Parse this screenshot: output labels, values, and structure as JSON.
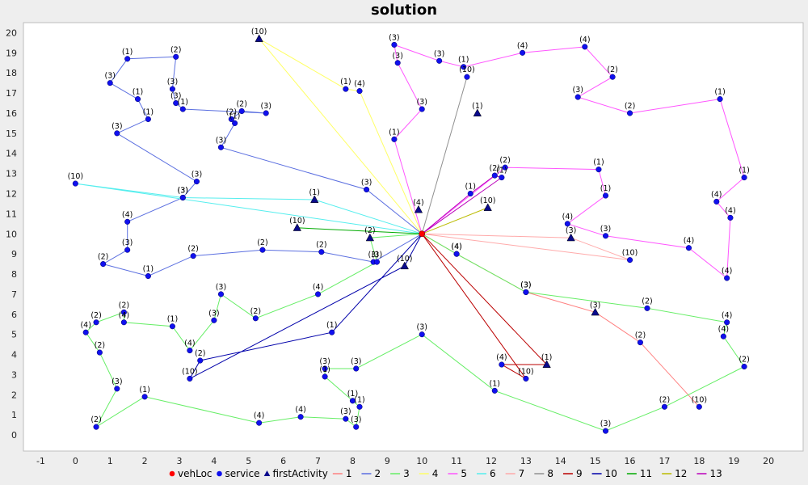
{
  "chart_data": {
    "type": "scatter",
    "title": "solution",
    "xlabel": "",
    "ylabel": "",
    "xlim": [
      -1.5,
      21
    ],
    "ylim": [
      -0.8,
      20.5
    ],
    "x_ticks": [
      -1,
      0,
      1,
      2,
      3,
      4,
      5,
      6,
      7,
      8,
      9,
      10,
      11,
      12,
      13,
      14,
      15,
      16,
      17,
      18,
      19,
      20
    ],
    "y_ticks": [
      0,
      1,
      2,
      3,
      4,
      5,
      6,
      7,
      8,
      9,
      10,
      11,
      12,
      13,
      14,
      15,
      16,
      17,
      18,
      19,
      20
    ],
    "grid": false,
    "legend_position": "bottom",
    "colors": {
      "background": "#eeeeee",
      "plot_background": "#ffffff",
      "vehLoc": "#ff0000",
      "service": "#1010ee",
      "firstActivity": "#0a0a8c"
    },
    "legend": {
      "markers": [
        {
          "key": "vehLoc",
          "label": "vehLoc",
          "shape": "circle",
          "color": "#ff0000"
        },
        {
          "key": "service",
          "label": "service",
          "shape": "circle",
          "color": "#1010ee"
        },
        {
          "key": "firstActivity",
          "label": "firstActivity",
          "shape": "triangle",
          "color": "#0a0a8c"
        }
      ]
    },
    "vehicle": {
      "x": 10,
      "y": 10
    },
    "routes": [
      {
        "name": "1",
        "color": "#ff8080",
        "points": [
          [
            10,
            10
          ],
          [
            11,
            9
          ],
          [
            13,
            7.1
          ],
          [
            15,
            6.1
          ],
          [
            16.3,
            4.6
          ],
          [
            18,
            1.4
          ]
        ],
        "labels": [
          null,
          "(4)",
          "(3)",
          "(3)",
          "(2)",
          "(10)"
        ],
        "first_index": 3
      },
      {
        "name": "2",
        "color": "#5b6fe0",
        "points": [
          [
            10,
            10
          ],
          [
            8.4,
            12.2
          ],
          [
            4.2,
            14.3
          ],
          [
            4.6,
            15.5
          ],
          [
            4.5,
            15.7
          ],
          [
            4.8,
            16.1
          ],
          [
            5.5,
            16
          ],
          [
            3.1,
            16.2
          ],
          [
            2.9,
            16.5
          ],
          [
            2.8,
            17.2
          ],
          [
            2.9,
            18.8
          ],
          [
            1.5,
            18.7
          ],
          [
            1,
            17.5
          ],
          [
            1.8,
            16.7
          ],
          [
            2.1,
            15.7
          ],
          [
            1.2,
            15
          ],
          [
            3.5,
            12.6
          ],
          [
            3.1,
            11.8
          ],
          [
            1.5,
            10.6
          ],
          [
            1.5,
            9.2
          ],
          [
            0.8,
            8.5
          ],
          [
            2.1,
            7.9
          ],
          [
            3.4,
            8.9
          ],
          [
            5.4,
            9.2
          ],
          [
            7.1,
            9.1
          ],
          [
            8.6,
            8.6
          ],
          [
            10,
            10
          ]
        ],
        "labels": [
          null,
          "(3)",
          "(3)",
          "(1)",
          "(2)",
          "(2)",
          "(3)",
          "(1)",
          "(3)",
          "(3)",
          "(2)",
          "(1)",
          "(3)",
          "(1)",
          "(1)",
          "(3)",
          "(3)",
          "(3)",
          "(4)",
          "(3)",
          "(2)",
          "(1)",
          "(2)",
          "(2)",
          "(2)",
          "(3)",
          null
        ],
        "first_index": null
      },
      {
        "name": "3",
        "color": "#66ee66",
        "points": [
          [
            10,
            10
          ],
          [
            8.5,
            9.8
          ],
          [
            8.7,
            8.6
          ],
          [
            7,
            7
          ],
          [
            5.2,
            5.8
          ],
          [
            4.2,
            7
          ],
          [
            4,
            5.7
          ],
          [
            3.3,
            4.2
          ],
          [
            2.8,
            5.4
          ],
          [
            1.4,
            5.6
          ],
          [
            1.4,
            6.1
          ],
          [
            0.6,
            5.6
          ],
          [
            0.3,
            5.1
          ],
          [
            0.7,
            4.1
          ],
          [
            1.2,
            2.3
          ],
          [
            0.6,
            0.4
          ],
          [
            2,
            1.9
          ],
          [
            5.3,
            0.6
          ],
          [
            6.5,
            0.9
          ],
          [
            7.8,
            0.8
          ],
          [
            8.1,
            0.4
          ],
          [
            8.2,
            1.4
          ],
          [
            8,
            1.7
          ],
          [
            7.2,
            2.9
          ],
          [
            7.2,
            3.3
          ],
          [
            8.1,
            3.3
          ],
          [
            10,
            5
          ],
          [
            12.1,
            2.2
          ],
          [
            15.3,
            0.2
          ],
          [
            17,
            1.4
          ],
          [
            19.3,
            3.4
          ],
          [
            18.7,
            4.9
          ],
          [
            18.8,
            5.6
          ],
          [
            16.5,
            6.3
          ],
          [
            13,
            7.1
          ],
          [
            11,
            9
          ],
          [
            10,
            10
          ]
        ],
        "labels": [
          null,
          "(2)",
          "(3)",
          "(4)",
          "(2)",
          "(3)",
          "(3)",
          "(4)",
          "(1)",
          "(4)",
          "(2)",
          "(2)",
          "(4)",
          "(2)",
          "(3)",
          "(2)",
          "(1)",
          "(4)",
          "(4)",
          "(3)",
          "(3)",
          "(1)",
          "(1)",
          "(1)",
          "(3)",
          "(3)",
          "(3)",
          "(1)",
          "(3)",
          "(2)",
          "(2)",
          "(4)",
          "(4)",
          "(2)",
          "(3)",
          "(4)",
          null
        ],
        "first_index": 1
      },
      {
        "name": "4",
        "color": "#ffff66",
        "points": [
          [
            10,
            10
          ],
          [
            8.2,
            17.1
          ],
          [
            7.8,
            17.2
          ],
          [
            5.3,
            19.7
          ],
          [
            10,
            10
          ]
        ],
        "labels": [
          null,
          "(4)",
          "(1)",
          "(10)",
          null
        ],
        "first_index": 3
      },
      {
        "name": "5",
        "color": "#ff55ff",
        "points": [
          [
            10,
            10
          ],
          [
            9.2,
            14.7
          ],
          [
            10,
            16.2
          ],
          [
            9.3,
            18.5
          ],
          [
            9.2,
            19.4
          ],
          [
            10.5,
            18.6
          ],
          [
            11.2,
            18.3
          ],
          [
            12.9,
            19
          ],
          [
            14.7,
            19.3
          ],
          [
            15.5,
            17.8
          ],
          [
            14.5,
            16.8
          ],
          [
            16,
            16
          ],
          [
            18.6,
            16.7
          ],
          [
            19.3,
            12.8
          ],
          [
            18.5,
            11.6
          ],
          [
            18.9,
            10.8
          ],
          [
            18.8,
            7.8
          ],
          [
            17.7,
            9.3
          ],
          [
            15.3,
            9.9
          ],
          [
            14.2,
            10.5
          ],
          [
            15.3,
            11.9
          ],
          [
            15.1,
            13.2
          ],
          [
            12.4,
            13.3
          ],
          [
            10,
            10
          ]
        ],
        "labels": [
          null,
          "(1)",
          "(3)",
          "(3)",
          "(3)",
          "(3)",
          "(1)",
          "(4)",
          "(4)",
          "(2)",
          "(3)",
          "(2)",
          "(1)",
          "(1)",
          "(4)",
          "(4)",
          "(4)",
          "(4)",
          "(3)",
          "(4)",
          "(1)",
          "(1)",
          "(2)",
          null
        ],
        "first_index": null
      },
      {
        "name": "6",
        "color": "#55eeee",
        "points": [
          [
            10,
            10
          ],
          [
            6.9,
            11.7
          ],
          [
            3.1,
            11.8
          ],
          [
            0,
            12.5
          ],
          [
            10,
            10
          ]
        ],
        "labels": [
          null,
          "(1)",
          "(3)",
          "(10)",
          null
        ],
        "first_index": 1
      },
      {
        "name": "7",
        "color": "#ffaaaa",
        "points": [
          [
            10,
            10
          ],
          [
            16,
            8.7
          ],
          [
            14.3,
            9.8
          ],
          [
            10,
            10
          ]
        ],
        "labels": [
          null,
          "(10)",
          "(3)",
          null
        ],
        "first_index": 2
      },
      {
        "name": "8",
        "color": "#909090",
        "points": [
          [
            10,
            10
          ],
          [
            11.3,
            17.8
          ],
          [
            10,
            10
          ]
        ],
        "labels": [
          null,
          "(10)",
          null
        ],
        "first_index": null
      },
      {
        "name": "9",
        "color": "#bb0000",
        "points": [
          [
            10,
            10
          ],
          [
            13,
            2.8
          ],
          [
            12.3,
            3.5
          ],
          [
            13.6,
            3.5
          ],
          [
            10,
            10
          ]
        ],
        "labels": [
          null,
          "(10)",
          "(4)",
          "(1)",
          null
        ],
        "first_index": 3
      },
      {
        "name": "10",
        "color": "#0000aa",
        "points": [
          [
            10,
            10
          ],
          [
            7.4,
            5.1
          ],
          [
            3.6,
            3.7
          ],
          [
            3.3,
            2.8
          ],
          [
            9.5,
            8.4
          ],
          [
            10,
            10
          ]
        ],
        "labels": [
          null,
          "(1)",
          "(2)",
          "(10)",
          "(10)",
          null
        ],
        "first_index": 4
      },
      {
        "name": "11",
        "color": "#00aa00",
        "points": [
          [
            10,
            10
          ],
          [
            6.4,
            10.3
          ],
          [
            10,
            10
          ]
        ],
        "labels": [
          null,
          "(10)",
          null
        ],
        "first_index": 1
      },
      {
        "name": "12",
        "color": "#bbbb00",
        "points": [
          [
            10,
            10
          ],
          [
            11.9,
            11.3
          ],
          [
            10,
            10
          ]
        ],
        "labels": [
          null,
          "(10)",
          null
        ],
        "first_index": 1
      },
      {
        "name": "13",
        "color": "#bb00bb",
        "points": [
          [
            10,
            10
          ],
          [
            11.4,
            12
          ],
          [
            12.1,
            12.9
          ],
          [
            12.3,
            12.8
          ],
          [
            10,
            10
          ]
        ],
        "labels": [
          null,
          "(1)",
          "(2)",
          "(1)",
          null
        ],
        "first_index": null
      }
    ],
    "extra_first_activities": [
      {
        "x": 9.9,
        "y": 11.2,
        "label": "(4)"
      },
      {
        "x": 11.6,
        "y": 16,
        "label": "(1)"
      }
    ]
  }
}
